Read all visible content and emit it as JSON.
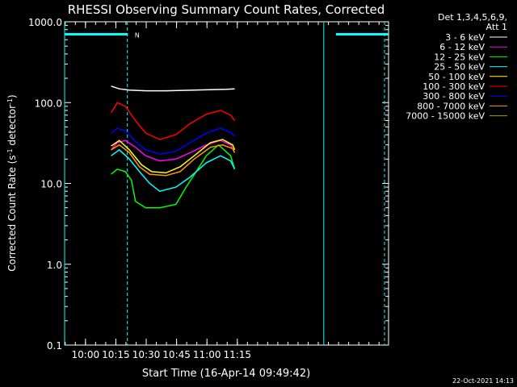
{
  "chart_data": {
    "type": "line",
    "title": "RHESSI Observing Summary Count Rates, Corrected",
    "xlabel": "Start Time (16-Apr-14 09:49:42)",
    "ylabel_main": "Corrected Count Rate (s",
    "ylabel_sup1": "-1",
    "ylabel_mid": " detector",
    "ylabel_sup2": "-1",
    "ylabel_end": ")",
    "ylog": true,
    "ylim": [
      0.1,
      1000
    ],
    "xlim_minutes": [
      0,
      160
    ],
    "yticks": [
      {
        "v": 1000,
        "label": "1000.0"
      },
      {
        "v": 100,
        "label": "100.0"
      },
      {
        "v": 10,
        "label": "10.0"
      },
      {
        "v": 1,
        "label": "1.0"
      },
      {
        "v": 0.1,
        "label": "0.1"
      }
    ],
    "xticks": [
      {
        "t": 10.3,
        "label": "10:00"
      },
      {
        "t": 25.3,
        "label": "10:15"
      },
      {
        "t": 40.3,
        "label": "10:30"
      },
      {
        "t": 55.3,
        "label": "10:45"
      },
      {
        "t": 70.3,
        "label": "11:00"
      },
      {
        "t": 85.3,
        "label": "11:15"
      }
    ],
    "legend_header": [
      "Det 1,3,4,5,6,9,",
      "Att 1"
    ],
    "series": [
      {
        "name": "3 - 6 keV",
        "color": "#ffffff",
        "points": [
          [
            23,
            160
          ],
          [
            27,
            148
          ],
          [
            32,
            143
          ],
          [
            40,
            140
          ],
          [
            50,
            140
          ],
          [
            60,
            142
          ],
          [
            70,
            144
          ],
          [
            80,
            146
          ],
          [
            84,
            148
          ]
        ]
      },
      {
        "name": "6 - 12 keV",
        "color": "#ff00ff",
        "points": [
          [
            23,
            26
          ],
          [
            26,
            32
          ],
          [
            30,
            34
          ],
          [
            35,
            28
          ],
          [
            40,
            22
          ],
          [
            47,
            19
          ],
          [
            55,
            20
          ],
          [
            62,
            24
          ],
          [
            70,
            30
          ],
          [
            77,
            34
          ],
          [
            82,
            30
          ],
          [
            84,
            24
          ]
        ]
      },
      {
        "name": "12 - 25 keV",
        "color": "#00ff00",
        "points": [
          [
            23,
            13
          ],
          [
            26,
            15
          ],
          [
            30,
            14
          ],
          [
            33,
            11
          ],
          [
            35,
            6
          ],
          [
            40,
            5
          ],
          [
            47,
            5
          ],
          [
            55,
            5.5
          ],
          [
            60,
            9
          ],
          [
            65,
            14
          ],
          [
            70,
            22
          ],
          [
            76,
            30
          ],
          [
            82,
            22
          ],
          [
            84,
            15
          ]
        ]
      },
      {
        "name": "25 - 50 keV",
        "color": "#00ffff",
        "points": [
          [
            23,
            22
          ],
          [
            27,
            26
          ],
          [
            32,
            20
          ],
          [
            37,
            14
          ],
          [
            42,
            10
          ],
          [
            47,
            8
          ],
          [
            55,
            9
          ],
          [
            62,
            12
          ],
          [
            70,
            18
          ],
          [
            77,
            22
          ],
          [
            82,
            19
          ],
          [
            84,
            15
          ]
        ]
      },
      {
        "name": "50 - 100 keV",
        "color": "#ffff00",
        "points": [
          [
            23,
            29
          ],
          [
            27,
            34
          ],
          [
            32,
            26
          ],
          [
            38,
            17
          ],
          [
            43,
            14
          ],
          [
            50,
            13.5
          ],
          [
            57,
            16
          ],
          [
            64,
            22
          ],
          [
            72,
            32
          ],
          [
            78,
            35
          ],
          [
            83,
            30
          ],
          [
            84,
            26
          ]
        ]
      },
      {
        "name": "100 - 300 keV",
        "color": "#ff0000",
        "points": [
          [
            23,
            75
          ],
          [
            26,
            100
          ],
          [
            30,
            90
          ],
          [
            35,
            60
          ],
          [
            40,
            42
          ],
          [
            47,
            35
          ],
          [
            55,
            40
          ],
          [
            62,
            55
          ],
          [
            70,
            72
          ],
          [
            77,
            80
          ],
          [
            82,
            70
          ],
          [
            84,
            60
          ]
        ]
      },
      {
        "name": "300 - 800 keV",
        "color": "#0000ff",
        "points": [
          [
            23,
            42
          ],
          [
            26,
            48
          ],
          [
            30,
            45
          ],
          [
            35,
            33
          ],
          [
            40,
            26
          ],
          [
            47,
            23
          ],
          [
            55,
            25
          ],
          [
            62,
            32
          ],
          [
            70,
            42
          ],
          [
            77,
            48
          ],
          [
            82,
            43
          ],
          [
            84,
            38
          ]
        ]
      },
      {
        "name": "800 - 7000 keV",
        "color": "#ff9900",
        "points": [
          [
            23,
            26
          ],
          [
            27,
            30
          ],
          [
            32,
            24
          ],
          [
            37,
            16
          ],
          [
            42,
            13
          ],
          [
            50,
            12.5
          ],
          [
            57,
            14
          ],
          [
            64,
            20
          ],
          [
            72,
            28
          ],
          [
            78,
            30
          ],
          [
            83,
            27
          ],
          [
            84,
            24
          ]
        ]
      },
      {
        "name": "7000 - 15000 keV",
        "color": "#99aa00",
        "points": []
      }
    ],
    "annotations": {
      "flag_label": "N",
      "saa_intervals": [
        [
          0,
          31
        ],
        [
          134,
          160
        ]
      ],
      "vertical_solid_minutes": [
        0,
        128
      ],
      "vertical_dashed_minutes": [
        31,
        158
      ]
    }
  },
  "footer": {
    "timestamp": "22-Oct-2021 14:13"
  }
}
